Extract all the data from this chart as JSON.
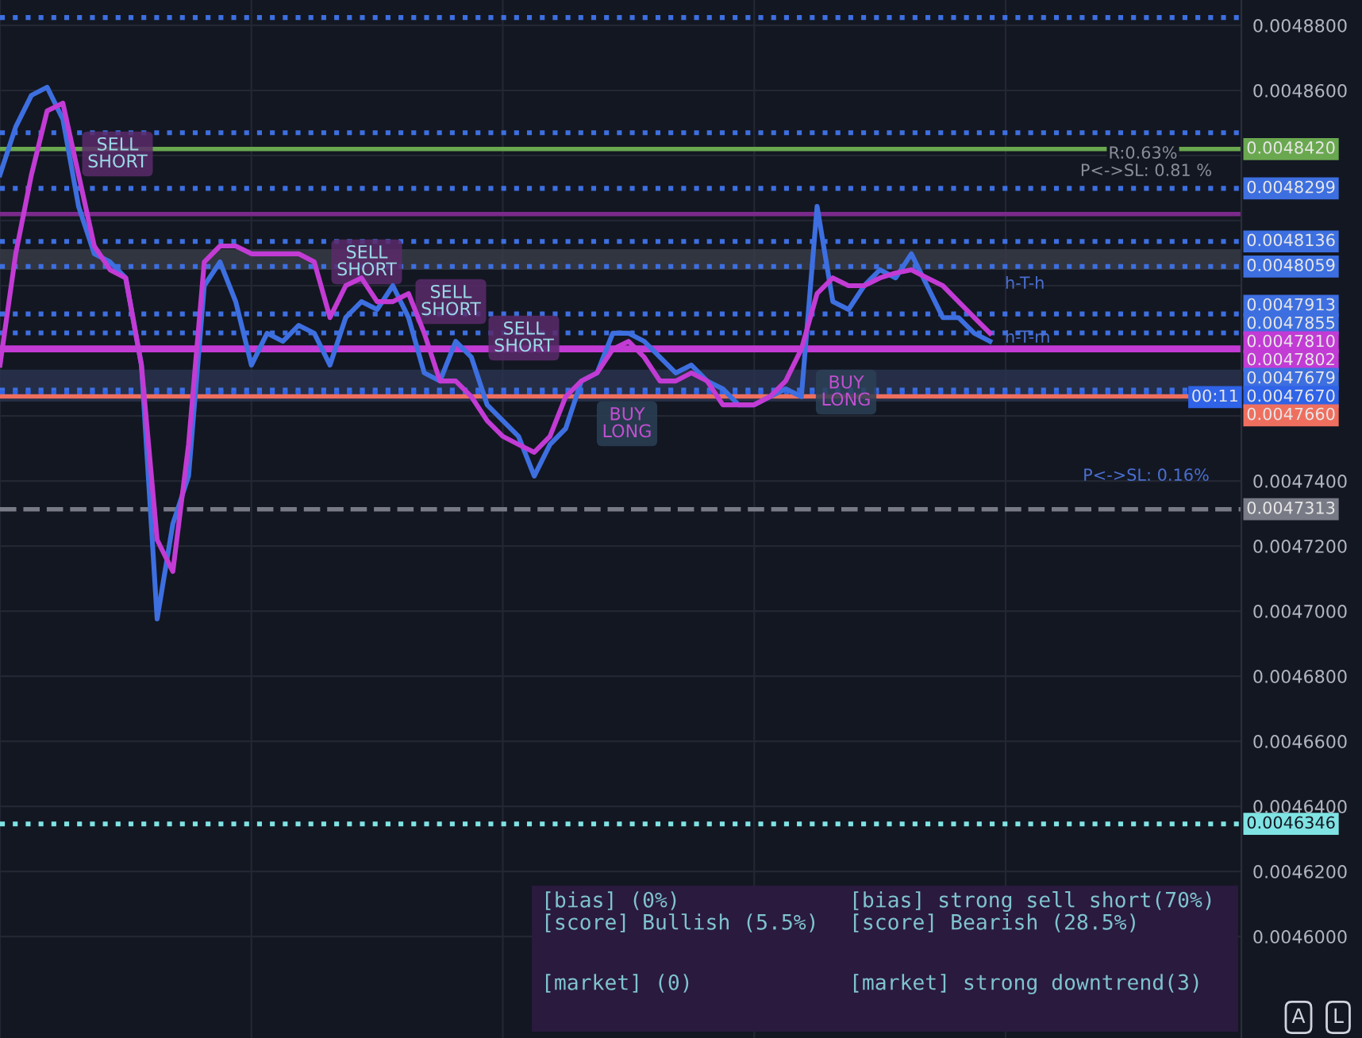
{
  "chart_data": {
    "type": "line",
    "categories": [
      null,
      null,
      null,
      null,
      null,
      null,
      null,
      null,
      null,
      null,
      null,
      null,
      null,
      null,
      null,
      null,
      null,
      null,
      null,
      null,
      null,
      null,
      null,
      null,
      null,
      null,
      null,
      null,
      null,
      null,
      null,
      null,
      null,
      null,
      null,
      null,
      null,
      null,
      null,
      null,
      null,
      null,
      null,
      null,
      null,
      null,
      null,
      null,
      null,
      null,
      null,
      null,
      null,
      null,
      null,
      null,
      null,
      null,
      null,
      null,
      null,
      null,
      null,
      null,
      null,
      null,
      null,
      null,
      null,
      null,
      null,
      null,
      null,
      null,
      null,
      null,
      null,
      null,
      null,
      null
    ],
    "series": [
      {
        "color": "#3d6fe0",
        "values": [
          0.0048341,
          0.0048488,
          0.0048585,
          0.004861,
          0.0048512,
          0.0048244,
          0.0048098,
          0.0048073,
          0.0048024,
          0.0047756,
          0.0046976,
          0.0047268,
          0.0047415,
          0.0048,
          0.0048073,
          0.0047951,
          0.0047756,
          0.0047854,
          0.0047829,
          0.0047878,
          0.0047854,
          0.0047756,
          0.0047902,
          0.0047951,
          0.0047927,
          0.0048,
          0.0047902,
          0.0047732,
          0.0047707,
          0.0047829,
          0.004778,
          0.0047634,
          0.0047585,
          0.0047537,
          0.0047415,
          0.0047512,
          0.0047561,
          0.0047707,
          0.0047732,
          0.0047854,
          0.0047854,
          0.0047829,
          0.004778,
          0.0047732,
          0.0047756,
          0.0047707,
          0.0047683,
          0.0047634,
          0.0047634,
          0.0047659,
          0.0047683,
          0.0047659,
          0.0048244,
          0.0047951,
          0.0047927,
          0.0048,
          0.0048049,
          0.0048024,
          0.0048098,
          0.0048,
          0.0047902,
          0.0047902,
          0.0047854,
          0.0047829,
          null,
          null,
          null,
          null,
          null,
          null,
          null,
          null,
          null,
          null,
          null,
          null,
          null,
          null,
          null,
          null
        ]
      },
      {
        "color": "#c23bd4",
        "values": [
          0.0047756,
          0.0048098,
          0.0048341,
          0.0048537,
          0.0048561,
          0.0048341,
          0.0048122,
          0.0048049,
          0.0048024,
          0.0047756,
          0.0047219,
          0.0047122,
          0.0047512,
          0.0048073,
          0.0048122,
          0.0048122,
          0.0048098,
          0.0048098,
          0.0048098,
          0.0048098,
          0.0048073,
          0.0047902,
          0.0048,
          0.0048024,
          0.0047951,
          0.0047951,
          0.0047976,
          0.0047854,
          0.0047707,
          0.0047707,
          0.0047659,
          0.0047585,
          0.0047537,
          0.0047512,
          0.0047488,
          0.0047537,
          0.0047659,
          0.0047707,
          0.0047732,
          0.0047805,
          0.0047829,
          0.004778,
          0.0047707,
          0.0047707,
          0.0047732,
          0.0047707,
          0.0047634,
          0.0047634,
          0.0047634,
          0.0047659,
          0.0047707,
          0.0047805,
          0.0047976,
          0.0048024,
          0.0048,
          0.0048,
          0.0048024,
          0.0048039,
          0.0048049,
          0.0048024,
          0.0048,
          0.0047951,
          0.0047902,
          0.0047854,
          null,
          null,
          null,
          null,
          null,
          null,
          null,
          null,
          null,
          null,
          null,
          null,
          null,
          null,
          null,
          null
        ]
      }
    ],
    "ylim": [
      0.0045688,
      0.0048878
    ],
    "yticks": [
      {
        "value": 0.00488,
        "label": "0.0048800"
      },
      {
        "value": 0.00486,
        "label": "0.0048600"
      },
      {
        "value": 0.00484,
        "label": null
      },
      {
        "value": 0.00482,
        "label": null
      },
      {
        "value": 0.0048,
        "label": null
      },
      {
        "value": 0.00478,
        "label": null
      },
      {
        "value": 0.00476,
        "label": null
      },
      {
        "value": 0.00474,
        "label": "0.0047400"
      },
      {
        "value": 0.00472,
        "label": "0.0047200"
      },
      {
        "value": 0.0047,
        "label": "0.0047000"
      },
      {
        "value": 0.00468,
        "label": "0.0046800"
      },
      {
        "value": 0.00466,
        "label": "0.0046600"
      },
      {
        "value": 0.00464,
        "label": "0.0046400"
      },
      {
        "value": 0.00462,
        "label": "0.0046200"
      },
      {
        "value": 0.0046,
        "label": "0.0046000"
      }
    ],
    "grid": true,
    "ref_lines": [
      {
        "axis": "y",
        "value": 0.0048824,
        "label": null,
        "color": "#3d6fe0",
        "line_style": "dotted"
      },
      {
        "axis": "y",
        "value": 0.004847,
        "label": null,
        "color": "#3d6fe0",
        "line_style": "dotted"
      },
      {
        "axis": "y",
        "value": 0.004842,
        "label": "0.0048420",
        "color": "#6aa84f",
        "line_style": "solid"
      },
      {
        "axis": "y",
        "value": 0.0048299,
        "label": "0.0048299",
        "color": "#3d6fe0",
        "line_style": "dotted"
      },
      {
        "axis": "y",
        "value": 0.004822,
        "label": null,
        "color": "#7a2a8a",
        "line_style": "solid"
      },
      {
        "axis": "y",
        "value": 0.0048136,
        "label": "0.0048136",
        "color": "#3d6fe0",
        "line_style": "dotted"
      },
      {
        "axis": "y",
        "value": 0.0048059,
        "label": "0.0048059",
        "color": "#3d6fe0",
        "line_style": "dotted"
      },
      {
        "axis": "y",
        "value": 0.0047913,
        "label": "0.0047913",
        "color": "#3d6fe0",
        "line_style": "dotted"
      },
      {
        "axis": "y",
        "value": 0.0047855,
        "label": "0.0047855",
        "color": "#3d6fe0",
        "line_style": "dotted"
      },
      {
        "axis": "y",
        "value": 0.004781,
        "label": "0.0047810",
        "color": "#c23bd4",
        "line_style": "solid"
      },
      {
        "axis": "y",
        "value": 0.0047802,
        "label": "0.0047802",
        "color": "#c23bd4",
        "line_style": "solid"
      },
      {
        "axis": "y",
        "value": 0.0047679,
        "label": "0.0047679",
        "color": "#3d6fe0",
        "line_style": "dotted"
      },
      {
        "axis": "y",
        "value": 0.004767,
        "label": "0.0047670",
        "color": "#2f63e8",
        "line_style": "dotted"
      },
      {
        "axis": "y",
        "value": 0.004766,
        "label": "0.0047660",
        "color": "#ef6f5f",
        "line_style": "solid"
      },
      {
        "axis": "y",
        "value": 0.0047313,
        "label": "0.0047313",
        "color": "#787b86",
        "line_style": "dashed"
      },
      {
        "axis": "y",
        "value": 0.0046346,
        "label": "0.0046346",
        "color": "#7fe3e3",
        "line_style": "dotted"
      }
    ],
    "bands": [
      {
        "axis": "y",
        "from": 0.0048049,
        "to": 0.0048112,
        "label": null,
        "color": "#3a3d48"
      },
      {
        "axis": "y",
        "from": 0.0047644,
        "to": 0.0047742,
        "label": null,
        "color": "#2a3450"
      }
    ],
    "annotations": [
      "SELL\nSHORT",
      "SELL\nSHORT",
      "SELL\nSHORT",
      "SELL\nSHORT",
      "BUY\nLONG",
      "BUY\nLONG",
      "h-T-h",
      "h-T-m",
      "R:0.63%",
      "P<->SL: 0.81 %",
      "P<->SL: 0.16%",
      "00:11",
      "[bias] (0%)",
      "[score] Bullish (5.5%)",
      "[market] (0)",
      "[bias] strong sell short(70%)",
      "[score] Bearish (28.5%)",
      "[market] strong downtrend(3)",
      "A",
      "L"
    ]
  }
}
